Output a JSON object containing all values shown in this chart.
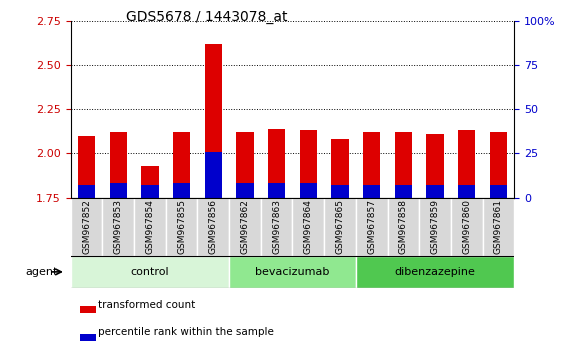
{
  "title": "GDS5678 / 1443078_at",
  "samples": [
    "GSM967852",
    "GSM967853",
    "GSM967854",
    "GSM967855",
    "GSM967856",
    "GSM967862",
    "GSM967863",
    "GSM967864",
    "GSM967865",
    "GSM967857",
    "GSM967858",
    "GSM967859",
    "GSM967860",
    "GSM967861"
  ],
  "transformed_count": [
    2.1,
    2.12,
    1.93,
    2.12,
    2.62,
    2.12,
    2.14,
    2.13,
    2.08,
    2.12,
    2.12,
    2.11,
    2.13,
    2.12
  ],
  "percentile_rank": [
    7,
    8,
    7,
    8,
    26,
    8,
    8,
    8,
    7,
    7,
    7,
    7,
    7,
    7
  ],
  "bar_bottom": 1.75,
  "ylim_left": [
    1.75,
    2.75
  ],
  "ylim_right": [
    0,
    100
  ],
  "yticks_left": [
    1.75,
    2.0,
    2.25,
    2.5,
    2.75
  ],
  "yticks_right": [
    0,
    25,
    50,
    75,
    100
  ],
  "groups": [
    {
      "label": "control",
      "start": 0,
      "end": 5,
      "color": "#d8f5d8"
    },
    {
      "label": "bevacizumab",
      "start": 5,
      "end": 9,
      "color": "#90e890"
    },
    {
      "label": "dibenzazepine",
      "start": 9,
      "end": 14,
      "color": "#50c850"
    }
  ],
  "agent_label": "agent",
  "legend_red_label": "transformed count",
  "legend_blue_label": "percentile rank within the sample",
  "bar_color_red": "#dd0000",
  "bar_color_blue": "#0000cc",
  "bar_width": 0.55,
  "grid_style": "dotted",
  "grid_color": "#000000",
  "tick_label_color_left": "#cc0000",
  "tick_label_color_right": "#0000cc",
  "tick_box_color": "#d8d8d8",
  "tick_box_edge_color": "#ffffff"
}
